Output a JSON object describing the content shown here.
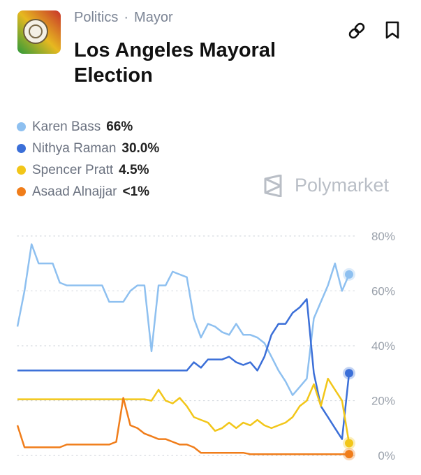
{
  "header": {
    "category": "Politics",
    "separator": "·",
    "subcategory": "Mayor",
    "title": "Los Angeles Mayoral Election",
    "brand": "Polymarket"
  },
  "chart_data": {
    "type": "line",
    "ylim": [
      -2,
      82
    ],
    "yticks": [
      {
        "value": 0,
        "label": "0%"
      },
      {
        "value": 20,
        "label": "20%"
      },
      {
        "value": 40,
        "label": "40%"
      },
      {
        "value": 60,
        "label": "60%"
      },
      {
        "value": 80,
        "label": "80%"
      }
    ],
    "grid": true,
    "series": [
      {
        "name": "Karen Bass",
        "color": "#8ec0f0",
        "latest": 66,
        "latest_label": "66%",
        "values": [
          47,
          60,
          77,
          70,
          70,
          70,
          63,
          62,
          62,
          62,
          62,
          62,
          62,
          56,
          56,
          56,
          60,
          62,
          62,
          38,
          62,
          62,
          67,
          66,
          65,
          50,
          43,
          48,
          47,
          45,
          44,
          48,
          44,
          44,
          43,
          41,
          36,
          31,
          27,
          22,
          25,
          28,
          50,
          56,
          62,
          70,
          60,
          66
        ]
      },
      {
        "name": "Nithya Raman",
        "color": "#3b6fd8",
        "latest": 30.0,
        "latest_label": "30.0%",
        "values": [
          31,
          31,
          31,
          31,
          31,
          31,
          31,
          31,
          31,
          31,
          31,
          31,
          31,
          31,
          31,
          31,
          31,
          31,
          31,
          31,
          31,
          31,
          31,
          31,
          31,
          34,
          32,
          35,
          35,
          35,
          36,
          34,
          33,
          34,
          31,
          36,
          44,
          48,
          48,
          52,
          54,
          57,
          30,
          18,
          14,
          10,
          6,
          30
        ]
      },
      {
        "name": "Spencer Pratt",
        "color": "#f2c619",
        "latest": 4.5,
        "latest_label": "4.5%",
        "values": [
          20.5,
          20.5,
          20.5,
          20.5,
          20.5,
          20.5,
          20.5,
          20.5,
          20.5,
          20.5,
          20.5,
          20.5,
          20.5,
          20.5,
          20.5,
          20.5,
          20.5,
          20.5,
          20.5,
          20,
          24,
          20,
          19,
          21,
          18,
          14,
          13,
          12,
          9,
          10,
          12,
          10,
          12,
          11,
          13,
          11,
          10,
          11,
          12,
          14,
          18,
          20,
          26,
          18,
          28,
          24,
          20,
          4.5
        ]
      },
      {
        "name": "Asaad Alnajjar",
        "color": "#f07d1a",
        "latest": 0.5,
        "latest_label": "<1%",
        "values": [
          11,
          3,
          3,
          3,
          3,
          3,
          3,
          4,
          4,
          4,
          4,
          4,
          4,
          4,
          5,
          21,
          11,
          10,
          8,
          7,
          6,
          6,
          5,
          4,
          4,
          3,
          1,
          1,
          1,
          1,
          1,
          1,
          1,
          0.5,
          0.5,
          0.5,
          0.5,
          0.5,
          0.5,
          0.5,
          0.5,
          0.5,
          0.5,
          0.5,
          0.5,
          0.5,
          0.5,
          0.5
        ]
      }
    ]
  }
}
